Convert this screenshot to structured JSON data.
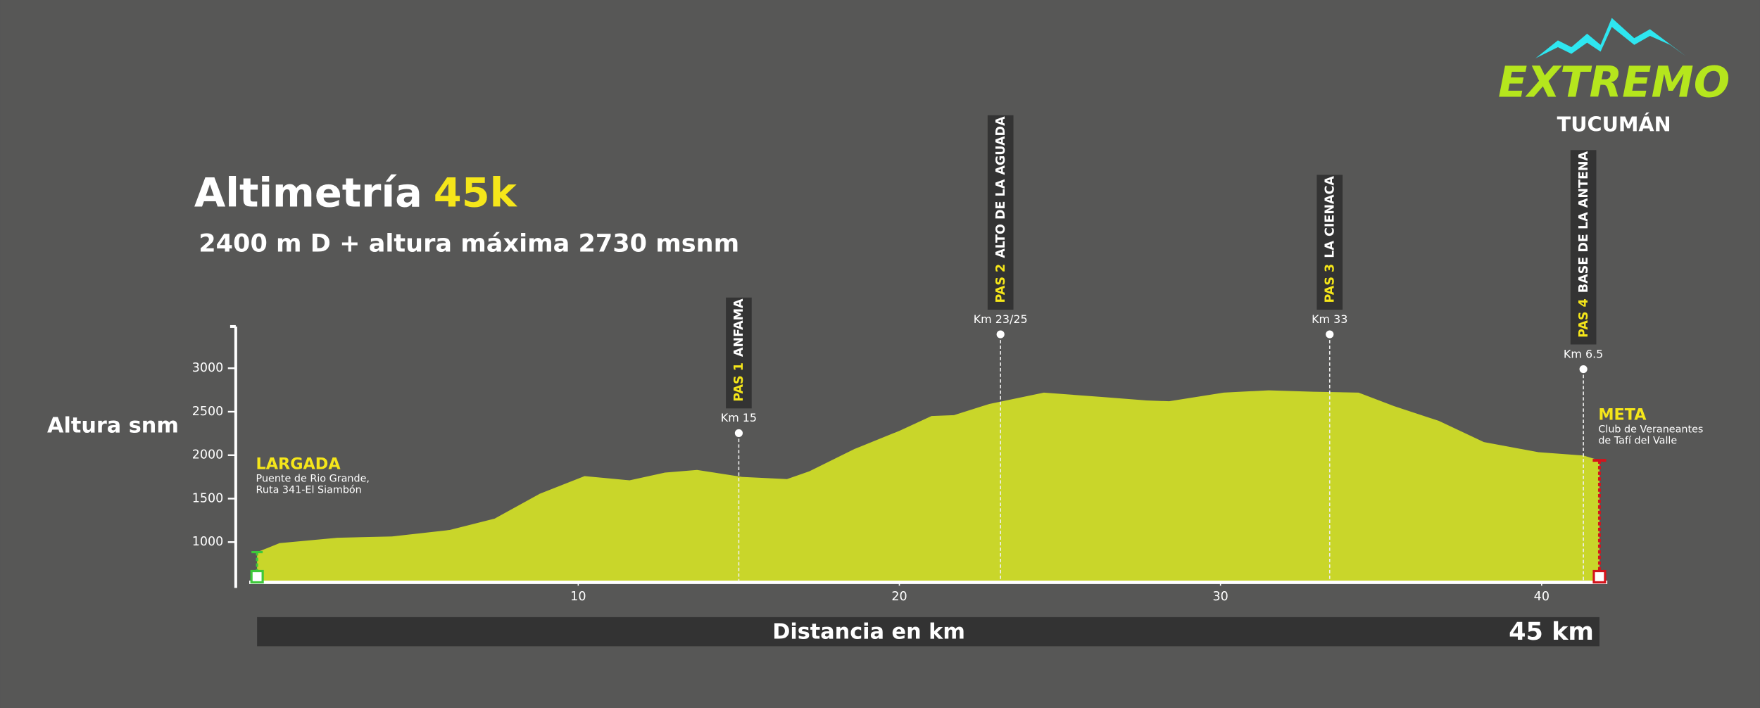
{
  "logo": {
    "brand": "EXTREMO",
    "place": "TUCUMÁN"
  },
  "chart_data": {
    "type": "area",
    "title": "Altimetría",
    "title_highlight": "45k",
    "subtitle": "2400 m D + altura máxima 2730 msnm",
    "y_label": "Altura snm",
    "x_label": "Distancia en km",
    "total_distance": "45 km",
    "color": "#c9d62a",
    "x": [
      0,
      0.7,
      2.5,
      4.2,
      6,
      7.4,
      8.8,
      10.2,
      10.9,
      11.6,
      12.7,
      13.7,
      15.1,
      16.5,
      17.2,
      18.6,
      20,
      21,
      21.7,
      22.8,
      24.5,
      26.3,
      27.7,
      28.4,
      30.1,
      31.5,
      32.9,
      34.3,
      35.4,
      36.8,
      38.2,
      39.9,
      41.3,
      41.8
    ],
    "values": [
      884,
      987,
      1050,
      1065,
      1140,
      1270,
      1555,
      1760,
      1735,
      1710,
      1800,
      1830,
      1750,
      1725,
      1815,
      2070,
      2280,
      2450,
      2460,
      2590,
      2720,
      2670,
      2630,
      2620,
      2720,
      2745,
      2730,
      2720,
      2565,
      2395,
      2150,
      2035,
      1995,
      1940
    ],
    "xlim": [
      0,
      41.8
    ],
    "ylim": [
      550,
      3480
    ],
    "xticks": [
      10,
      20,
      30,
      40
    ],
    "yticks": [
      1000,
      1500,
      2000,
      2500,
      3000
    ],
    "start": {
      "label": "LARGADA",
      "lines": [
        "Puente de Rio Grande,",
        "Ruta 341-El Siambón"
      ]
    },
    "finish": {
      "label": "META",
      "lines": [
        "Club de Veraneantes",
        "de Tafí del Valle"
      ]
    },
    "passes": [
      {
        "pas": "PAS 1",
        "name": "ANFAMA",
        "km_label": "Km 15",
        "x": 15
      },
      {
        "pas": "PAS 2",
        "name": "ALTO DE LA AGUADA",
        "km_label": "Km 23/25",
        "x": 23.15
      },
      {
        "pas": "PAS 3",
        "name": "LA CIENACA",
        "km_label": "Km 33",
        "x": 33.4
      },
      {
        "pas": "PAS 4",
        "name": "BASE DE LA ANTENA",
        "km_label": "Km 6.5",
        "x": 41.3
      }
    ]
  }
}
